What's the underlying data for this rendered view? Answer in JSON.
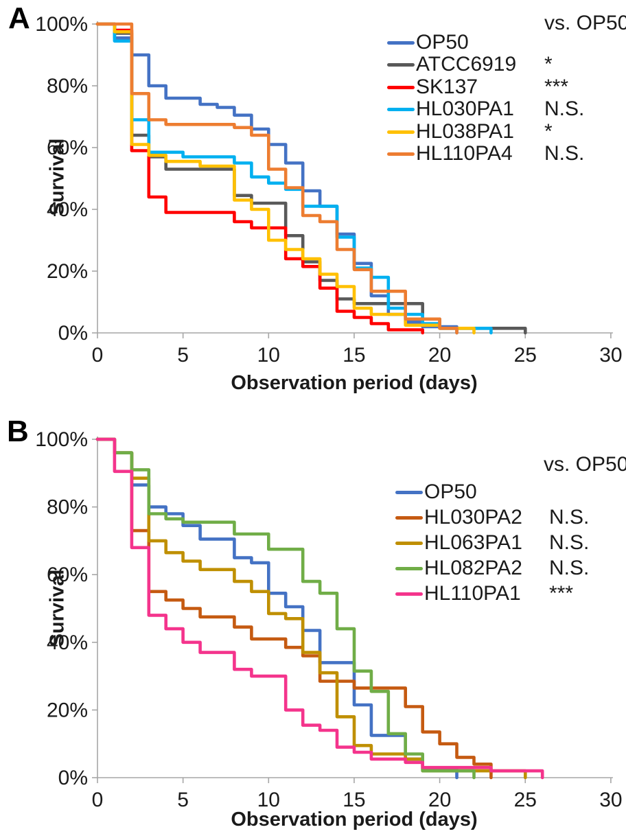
{
  "figure": {
    "background": "#FFFFFF",
    "text_color": "#1a1a1a",
    "axis_color": "#A6A6A6"
  },
  "chart_data": [
    {
      "type": "line",
      "style": "kaplan-meier-step",
      "panel_label": "A",
      "xlabel": "Observation period (days)",
      "ylabel": "Survival",
      "xlim": [
        0,
        30
      ],
      "ylim_pct": [
        0,
        100
      ],
      "x_ticks": [
        0,
        5,
        10,
        15,
        20,
        25,
        30
      ],
      "y_tick_labels": [
        "0%",
        "20%",
        "40%",
        "60%",
        "80%",
        "100%"
      ],
      "grid": false,
      "legend_position": "top-right",
      "legend_header": "vs. OP50",
      "series": [
        {
          "name": "OP50",
          "color": "#4472C4",
          "significance": "",
          "points": [
            [
              0,
              100
            ],
            [
              1,
              95.5
            ],
            [
              2,
              90
            ],
            [
              3,
              80
            ],
            [
              4,
              76
            ],
            [
              6,
              74
            ],
            [
              7,
              73
            ],
            [
              8,
              70.5
            ],
            [
              9,
              66
            ],
            [
              10,
              61
            ],
            [
              11,
              55
            ],
            [
              12,
              46
            ],
            [
              13,
              41
            ],
            [
              14,
              32
            ],
            [
              15,
              22.5
            ],
            [
              16,
              12
            ],
            [
              17,
              6
            ],
            [
              18,
              3.5
            ],
            [
              19,
              2
            ],
            [
              21,
              0
            ]
          ]
        },
        {
          "name": "ATCC6919",
          "color": "#595959",
          "significance": "*",
          "points": [
            [
              0,
              100
            ],
            [
              1,
              97
            ],
            [
              2,
              64
            ],
            [
              3,
              57
            ],
            [
              4,
              53
            ],
            [
              8,
              44.5
            ],
            [
              9,
              42
            ],
            [
              11,
              31.5
            ],
            [
              12,
              23
            ],
            [
              13,
              17
            ],
            [
              14,
              11
            ],
            [
              15,
              9.5
            ],
            [
              19,
              4.5
            ],
            [
              20,
              1.5
            ],
            [
              25,
              0
            ]
          ]
        },
        {
          "name": "SK137",
          "color": "#FF0000",
          "significance": "***",
          "points": [
            [
              0,
              100
            ],
            [
              1,
              98
            ],
            [
              2,
              59
            ],
            [
              3,
              44
            ],
            [
              4,
              39
            ],
            [
              8,
              36
            ],
            [
              9,
              34
            ],
            [
              11,
              24
            ],
            [
              12,
              21.5
            ],
            [
              13,
              14.5
            ],
            [
              14,
              7
            ],
            [
              15,
              5
            ],
            [
              16,
              3
            ],
            [
              17,
              1
            ],
            [
              19,
              0
            ]
          ]
        },
        {
          "name": "HL030PA1",
          "color": "#00B0F0",
          "significance": "N.S.",
          "points": [
            [
              0,
              100
            ],
            [
              1,
              94.5
            ],
            [
              2,
              69
            ],
            [
              3,
              58.5
            ],
            [
              5,
              57
            ],
            [
              8,
              55
            ],
            [
              9,
              50.5
            ],
            [
              10,
              48.5
            ],
            [
              11,
              46.5
            ],
            [
              12,
              41
            ],
            [
              14,
              31
            ],
            [
              15,
              21
            ],
            [
              16,
              18
            ],
            [
              17,
              8
            ],
            [
              18,
              6
            ],
            [
              19,
              3
            ],
            [
              20,
              1.5
            ],
            [
              23,
              0
            ]
          ]
        },
        {
          "name": "HL038PA1",
          "color": "#FFC000",
          "significance": "*",
          "points": [
            [
              0,
              100
            ],
            [
              1,
              97.5
            ],
            [
              2,
              61
            ],
            [
              3,
              57.5
            ],
            [
              4,
              55.5
            ],
            [
              6,
              54
            ],
            [
              8,
              43
            ],
            [
              9,
              40
            ],
            [
              10,
              30
            ],
            [
              11,
              27
            ],
            [
              12,
              24
            ],
            [
              13,
              19
            ],
            [
              14,
              15
            ],
            [
              15,
              8
            ],
            [
              16,
              6
            ],
            [
              18,
              2.5
            ],
            [
              20,
              1.5
            ],
            [
              22,
              0
            ]
          ]
        },
        {
          "name": "HL110PA4",
          "color": "#ED7D31",
          "significance": "N.S.",
          "points": [
            [
              0,
              100
            ],
            [
              2,
              77.5
            ],
            [
              3,
              69
            ],
            [
              4,
              67.5
            ],
            [
              8,
              66.5
            ],
            [
              9,
              64
            ],
            [
              10,
              53
            ],
            [
              11,
              47
            ],
            [
              12,
              38
            ],
            [
              13,
              36
            ],
            [
              14,
              27
            ],
            [
              15,
              20.5
            ],
            [
              16,
              13.5
            ],
            [
              18,
              4.5
            ],
            [
              20,
              1.5
            ],
            [
              21,
              0
            ]
          ]
        }
      ]
    },
    {
      "type": "line",
      "style": "kaplan-meier-step",
      "panel_label": "B",
      "xlabel": "Observation period (days)",
      "ylabel": "Survival",
      "xlim": [
        0,
        30
      ],
      "ylim_pct": [
        0,
        100
      ],
      "x_ticks": [
        0,
        5,
        10,
        15,
        20,
        25,
        30
      ],
      "y_tick_labels": [
        "0%",
        "20%",
        "40%",
        "60%",
        "80%",
        "100%"
      ],
      "grid": false,
      "legend_position": "top-right",
      "legend_header": "vs. OP50",
      "series": [
        {
          "name": "OP50",
          "color": "#4472C4",
          "significance": "",
          "points": [
            [
              0,
              100
            ],
            [
              1,
              96
            ],
            [
              2,
              86.5
            ],
            [
              3,
              80
            ],
            [
              4,
              78
            ],
            [
              5,
              74.5
            ],
            [
              6,
              70.5
            ],
            [
              8,
              65
            ],
            [
              9,
              63.5
            ],
            [
              10,
              54.5
            ],
            [
              11,
              50.5
            ],
            [
              12,
              43.5
            ],
            [
              13,
              34
            ],
            [
              15,
              21.5
            ],
            [
              16,
              12.5
            ],
            [
              18,
              5.5
            ],
            [
              19,
              2.5
            ],
            [
              21,
              0
            ]
          ]
        },
        {
          "name": "HL030PA2",
          "color": "#C55A11",
          "significance": "N.S.",
          "points": [
            [
              0,
              100
            ],
            [
              1,
              96
            ],
            [
              2,
              73
            ],
            [
              3,
              55
            ],
            [
              4,
              52.5
            ],
            [
              5,
              50
            ],
            [
              6,
              47.5
            ],
            [
              8,
              44.5
            ],
            [
              9,
              41
            ],
            [
              11,
              38.5
            ],
            [
              12,
              36
            ],
            [
              13,
              28.5
            ],
            [
              15,
              26.5
            ],
            [
              18,
              21
            ],
            [
              19,
              13.5
            ],
            [
              20,
              10
            ],
            [
              21,
              6
            ],
            [
              22,
              4
            ],
            [
              23,
              0
            ]
          ]
        },
        {
          "name": "HL063PA1",
          "color": "#BF8F00",
          "significance": "N.S.",
          "points": [
            [
              0,
              100
            ],
            [
              1,
              96
            ],
            [
              2,
              88.5
            ],
            [
              3,
              70
            ],
            [
              4,
              66.5
            ],
            [
              5,
              64
            ],
            [
              6,
              61.5
            ],
            [
              8,
              58
            ],
            [
              9,
              55
            ],
            [
              10,
              48.5
            ],
            [
              11,
              47
            ],
            [
              12,
              37
            ],
            [
              13,
              31
            ],
            [
              14,
              18
            ],
            [
              15,
              9.5
            ],
            [
              16,
              7
            ],
            [
              18,
              5.5
            ],
            [
              19,
              2
            ],
            [
              25,
              0
            ]
          ]
        },
        {
          "name": "HL082PA2",
          "color": "#70AD47",
          "significance": "N.S.",
          "points": [
            [
              0,
              100
            ],
            [
              1,
              96
            ],
            [
              2,
              91
            ],
            [
              3,
              78
            ],
            [
              4,
              76.5
            ],
            [
              5,
              75.5
            ],
            [
              8,
              72
            ],
            [
              10,
              67.5
            ],
            [
              12,
              58
            ],
            [
              13,
              54.5
            ],
            [
              14,
              44
            ],
            [
              15,
              31.5
            ],
            [
              16,
              25.5
            ],
            [
              17,
              13
            ],
            [
              18,
              7
            ],
            [
              19,
              2
            ],
            [
              22,
              0
            ]
          ]
        },
        {
          "name": "HL110PA1",
          "color": "#F4348C",
          "significance": "***",
          "points": [
            [
              0,
              100
            ],
            [
              1,
              90.5
            ],
            [
              2,
              68
            ],
            [
              3,
              48
            ],
            [
              4,
              44
            ],
            [
              5,
              40
            ],
            [
              6,
              37
            ],
            [
              8,
              32
            ],
            [
              9,
              30
            ],
            [
              11,
              20
            ],
            [
              12,
              15.5
            ],
            [
              13,
              14
            ],
            [
              14,
              9
            ],
            [
              15,
              7.5
            ],
            [
              16,
              5.5
            ],
            [
              18,
              4.5
            ],
            [
              19,
              3
            ],
            [
              23,
              2
            ],
            [
              26,
              0
            ]
          ]
        }
      ]
    }
  ]
}
